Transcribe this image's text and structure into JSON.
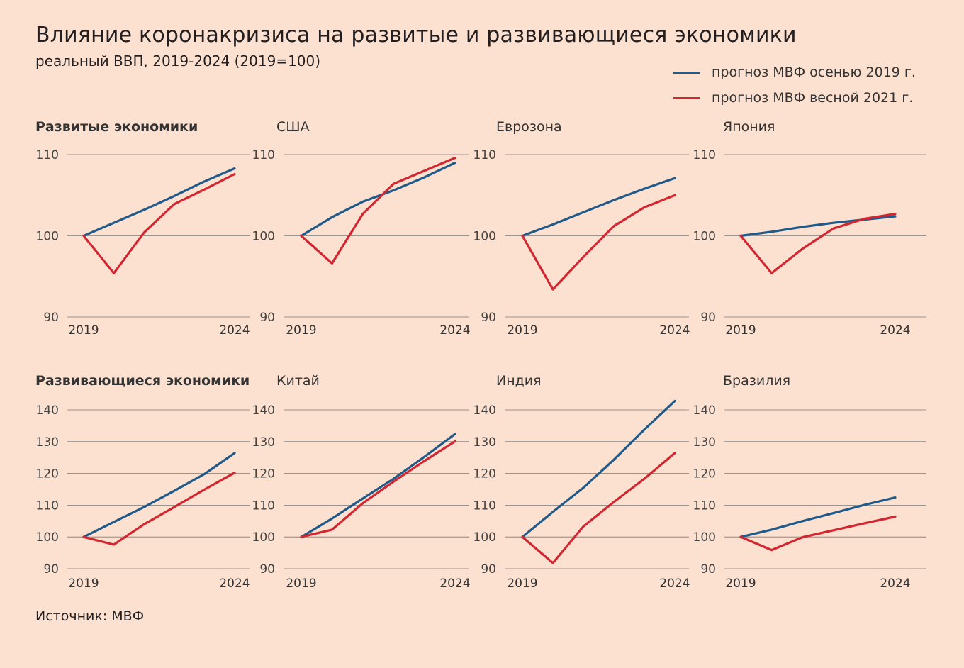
{
  "title": "Влияние коронакризиса на развитые и развивающиеся экономики",
  "subtitle": "реальный ВВП, 2019-2024 (2019=100)",
  "source": "Источник: МВФ",
  "legend": [
    {
      "label": "прогноз МВФ осенью 2019 г.",
      "color": "#1f5a8a"
    },
    {
      "label": "прогноз МВФ весной 2021 г.",
      "color": "#d22630"
    }
  ],
  "chart_data": [
    {
      "type": "line",
      "title": "Развитые экономики",
      "bold": true,
      "x": [
        2019,
        2020,
        2021,
        2022,
        2023,
        2024
      ],
      "xticks": [
        "2019",
        "2024"
      ],
      "yticks": [
        90,
        100,
        110
      ],
      "ylim": [
        90,
        110
      ],
      "series": [
        {
          "name": "прогноз МВФ осенью 2019 г.",
          "values": [
            100,
            101.6,
            103.2,
            104.9,
            106.7,
            108.3
          ]
        },
        {
          "name": "прогноз МВФ весной 2021 г.",
          "values": [
            100,
            95.4,
            100.4,
            103.9,
            105.7,
            107.6
          ]
        }
      ]
    },
    {
      "type": "line",
      "title": "США",
      "bold": false,
      "x": [
        2019,
        2020,
        2021,
        2022,
        2023,
        2024
      ],
      "xticks": [
        "2019",
        "2024"
      ],
      "yticks": [
        90,
        100,
        110
      ],
      "ylim": [
        90,
        110
      ],
      "series": [
        {
          "name": "прогноз МВФ осенью 2019 г.",
          "values": [
            100,
            102.3,
            104.2,
            105.6,
            107.2,
            109.0
          ]
        },
        {
          "name": "прогноз МВФ весной 2021 г.",
          "values": [
            100,
            96.6,
            102.7,
            106.4,
            108.0,
            109.6
          ]
        }
      ]
    },
    {
      "type": "line",
      "title": "Еврозона",
      "bold": false,
      "x": [
        2019,
        2020,
        2021,
        2022,
        2023,
        2024
      ],
      "xticks": [
        "2019",
        "2024"
      ],
      "yticks": [
        90,
        100,
        110
      ],
      "ylim": [
        90,
        110
      ],
      "series": [
        {
          "name": "прогноз МВФ осенью 2019 г.",
          "values": [
            100,
            101.4,
            102.9,
            104.4,
            105.8,
            107.1
          ]
        },
        {
          "name": "прогноз МВФ весной 2021 г.",
          "values": [
            100,
            93.4,
            97.4,
            101.2,
            103.5,
            105.0
          ]
        }
      ]
    },
    {
      "type": "line",
      "title": "Япония",
      "bold": false,
      "x": [
        2019,
        2020,
        2021,
        2022,
        2023,
        2024
      ],
      "xticks": [
        "2019",
        "2024"
      ],
      "yticks": [
        90,
        100,
        110
      ],
      "ylim": [
        90,
        110
      ],
      "series": [
        {
          "name": "прогноз МВФ осенью 2019 г.",
          "values": [
            100,
            100.5,
            101.1,
            101.6,
            102.0,
            102.4
          ]
        },
        {
          "name": "прогноз МВФ весной 2021 г.",
          "values": [
            100,
            95.4,
            98.4,
            100.9,
            102.1,
            102.7
          ]
        }
      ]
    },
    {
      "type": "line",
      "title": "Развивающиеся экономики",
      "bold": true,
      "x": [
        2019,
        2020,
        2021,
        2022,
        2023,
        2024
      ],
      "xticks": [
        "2019",
        "2024"
      ],
      "yticks": [
        90,
        100,
        110,
        120,
        130,
        140
      ],
      "ylim": [
        90,
        140
      ],
      "series": [
        {
          "name": "прогноз МВФ осенью 2019 г.",
          "values": [
            100,
            104.7,
            109.4,
            114.5,
            119.8,
            126.4
          ]
        },
        {
          "name": "прогноз МВФ весной 2021 г.",
          "values": [
            100,
            97.6,
            104.0,
            109.4,
            114.9,
            120.2
          ]
        }
      ]
    },
    {
      "type": "line",
      "title": "Китай",
      "bold": false,
      "x": [
        2019,
        2020,
        2021,
        2022,
        2023,
        2024
      ],
      "xticks": [
        "2019",
        "2024"
      ],
      "yticks": [
        90,
        100,
        110,
        120,
        130,
        140
      ],
      "ylim": [
        90,
        140
      ],
      "series": [
        {
          "name": "прогноз МВФ осенью 2019 г.",
          "values": [
            100,
            105.8,
            112.1,
            118.3,
            125.2,
            132.4
          ]
        },
        {
          "name": "прогноз МВФ весной 2021 г.",
          "values": [
            100,
            102.3,
            110.6,
            117.4,
            123.9,
            130.1
          ]
        }
      ]
    },
    {
      "type": "line",
      "title": "Индия",
      "bold": false,
      "x": [
        2019,
        2020,
        2021,
        2022,
        2023,
        2024
      ],
      "xticks": [
        "2019",
        "2024"
      ],
      "yticks": [
        90,
        100,
        110,
        120,
        130,
        140
      ],
      "ylim": [
        90,
        140
      ],
      "series": [
        {
          "name": "прогноз МВФ осенью 2019 г.",
          "values": [
            100,
            107.9,
            115.5,
            124.3,
            133.8,
            142.8
          ]
        },
        {
          "name": "прогноз МВФ весной 2021 г.",
          "values": [
            100,
            91.8,
            103.3,
            111.0,
            118.3,
            126.4
          ]
        }
      ]
    },
    {
      "type": "line",
      "title": "Бразилия",
      "bold": false,
      "x": [
        2019,
        2020,
        2021,
        2022,
        2023,
        2024
      ],
      "xticks": [
        "2019",
        "2024"
      ],
      "yticks": [
        90,
        100,
        110,
        120,
        130,
        140
      ],
      "ylim": [
        90,
        140
      ],
      "series": [
        {
          "name": "прогноз МВФ осенью 2019 г.",
          "values": [
            100,
            102.3,
            105.0,
            107.5,
            110.1,
            112.4
          ]
        },
        {
          "name": "прогноз МВФ весной 2021 г.",
          "values": [
            100,
            95.9,
            99.9,
            102.1,
            104.3,
            106.4
          ]
        }
      ]
    }
  ]
}
